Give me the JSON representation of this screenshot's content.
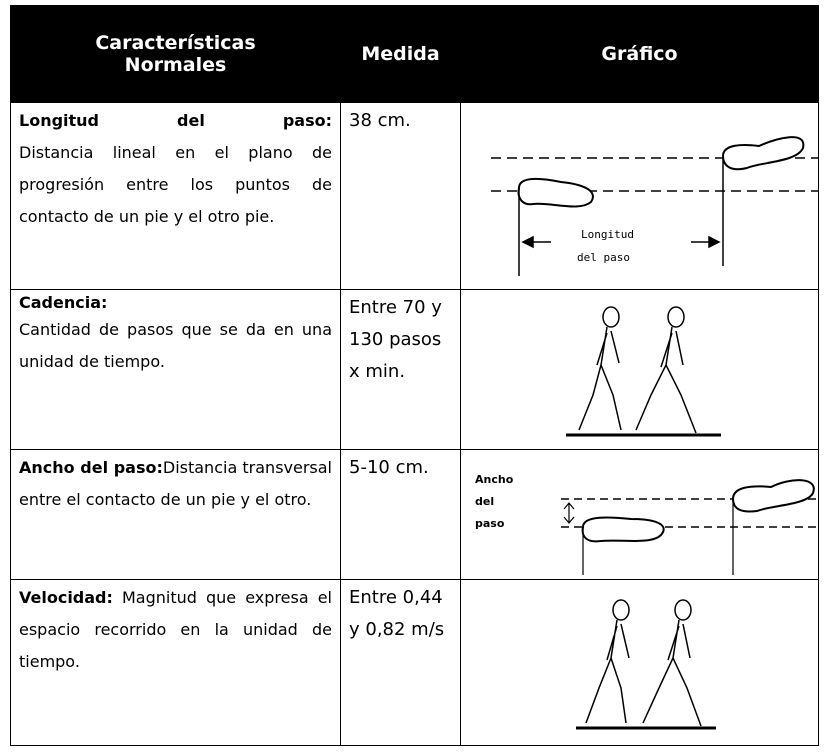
{
  "table": {
    "header": [
      "Características Normales",
      "Medida",
      "Gráfico"
    ],
    "rows": [
      {
        "term": "Longitud del paso:",
        "description": "Distancia lineal en el plano de progresión entre los puntos de contacto de un pie y el otro pie.",
        "measure": "38 cm.",
        "graphic_label": [
          "Longitud",
          "del paso"
        ]
      },
      {
        "term": "Cadencia:",
        "description": "Cantidad de pasos que se da en una unidad de tiempo.",
        "measure": "Entre 70 y 130 pasos x min."
      },
      {
        "term": "Ancho del paso:",
        "description": "Distancia transversal entre el contacto de un pie y el otro.",
        "measure": "5-10 cm.",
        "graphic_label": [
          "Ancho",
          "del",
          "paso"
        ]
      },
      {
        "term": "Velocidad:",
        "description": "Magnitud que expresa el espacio recorrido en la unidad de tiempo.",
        "measure": "Entre 0,44 y 0,82 m/s"
      }
    ]
  }
}
